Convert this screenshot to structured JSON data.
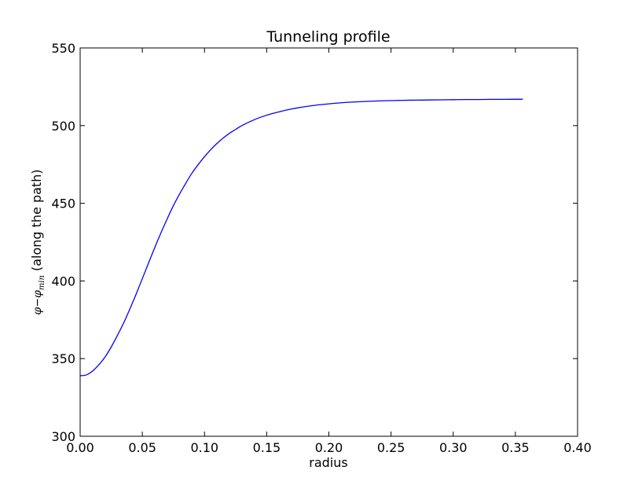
{
  "chart_data": {
    "type": "line",
    "title": "Tunneling profile",
    "xlabel": "radius",
    "ylabel": {
      "prefix": "φ",
      "minus": "−",
      "phi": "φ",
      "subscript": "min",
      "suffix": " (along the path)"
    },
    "xlim": [
      0.0,
      0.4
    ],
    "ylim": [
      300,
      550
    ],
    "xticks": [
      "0.00",
      "0.05",
      "0.10",
      "0.15",
      "0.20",
      "0.25",
      "0.30",
      "0.35",
      "0.40"
    ],
    "yticks": [
      "300",
      "350",
      "400",
      "450",
      "500",
      "550"
    ],
    "grid": false,
    "series": [
      {
        "color": "#0000ff",
        "x": [
          0.0,
          0.005,
          0.01,
          0.015,
          0.02,
          0.025,
          0.03,
          0.035,
          0.04,
          0.045,
          0.05,
          0.055,
          0.06,
          0.065,
          0.07,
          0.075,
          0.08,
          0.085,
          0.09,
          0.095,
          0.1,
          0.105,
          0.11,
          0.115,
          0.12,
          0.125,
          0.13,
          0.14,
          0.15,
          0.16,
          0.17,
          0.18,
          0.19,
          0.2,
          0.21,
          0.22,
          0.23,
          0.24,
          0.25,
          0.26,
          0.27,
          0.28,
          0.29,
          0.3,
          0.31,
          0.32,
          0.33,
          0.34,
          0.356
        ],
        "y": [
          339,
          339.5,
          342,
          346,
          351,
          357.5,
          365,
          373,
          382,
          391.5,
          401.5,
          411.5,
          421.5,
          431,
          440,
          448.5,
          456,
          463,
          469.5,
          475,
          480,
          484.5,
          488.5,
          492,
          495,
          497.5,
          500,
          503.8,
          506.7,
          508.9,
          510.7,
          512.1,
          513.2,
          514,
          514.7,
          515.2,
          515.6,
          515.9,
          516.1,
          516.3,
          516.4,
          516.5,
          516.6,
          516.7,
          516.8,
          516.8,
          516.9,
          516.9,
          517
        ]
      }
    ]
  }
}
